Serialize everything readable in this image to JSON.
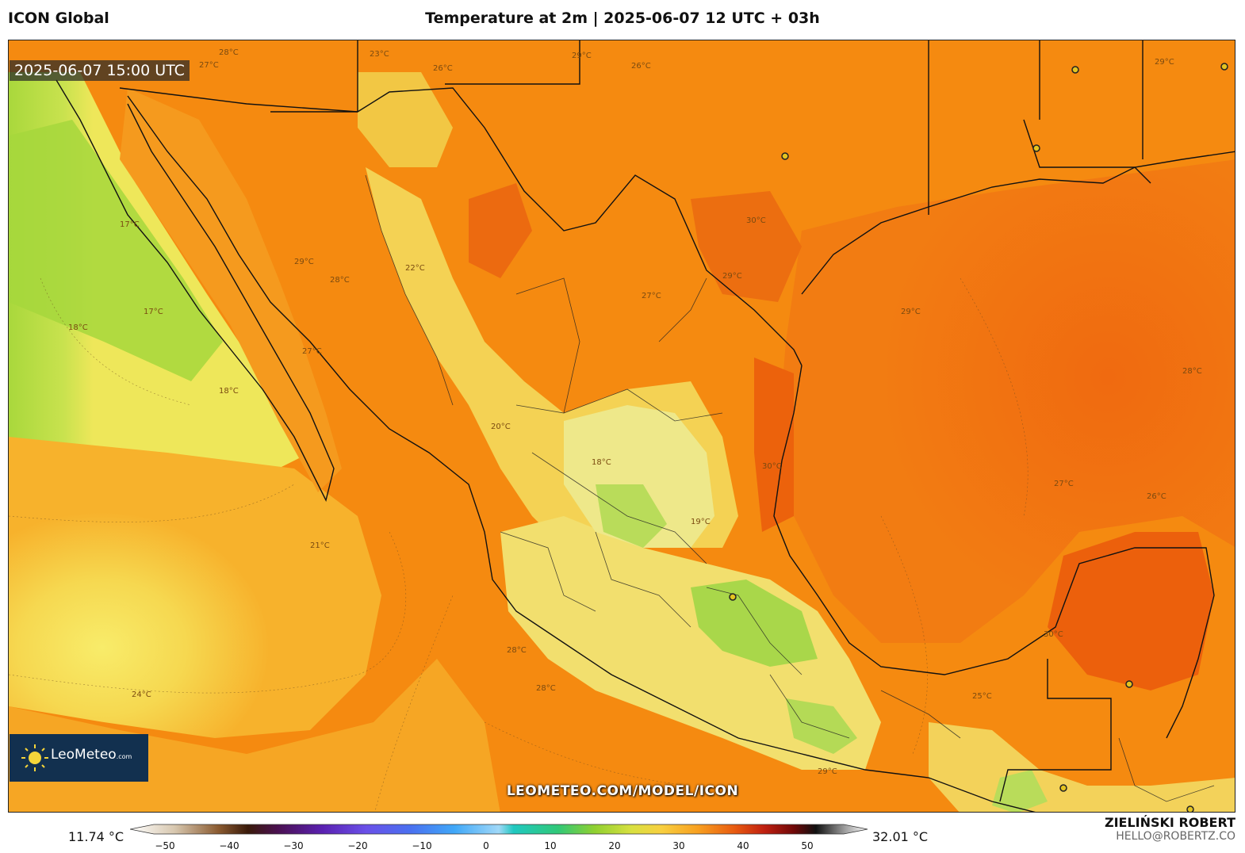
{
  "header": {
    "model": "ICON Global",
    "title": "Temperature at 2m | 2025-06-07 12 UTC + 03h"
  },
  "map": {
    "valid_time": "2025-06-07 15:00 UTC",
    "watermark": "LEOMETEO.COM/MODEL/ICON",
    "contour_labels": [
      {
        "text": "27°C"
      },
      {
        "text": "28°C"
      },
      {
        "text": "23°C"
      },
      {
        "text": "26°C"
      },
      {
        "text": "29°C"
      },
      {
        "text": "17°C"
      },
      {
        "text": "18°C"
      },
      {
        "text": "21°C"
      },
      {
        "text": "24°C"
      },
      {
        "text": "30°C"
      },
      {
        "text": "22°C"
      },
      {
        "text": "20°C"
      },
      {
        "text": "19°C"
      },
      {
        "text": "25°C"
      }
    ],
    "colors": {
      "ocean_pacific_cool": "#a8d83a",
      "pacific_mid": "#f2e35a",
      "pacific_warm": "#f7b830",
      "land_warm": "#f07e0c",
      "gulf": "#f06f10",
      "highland": "#f4e27a",
      "highland_cool": "#a8d850",
      "hot": "#e85a0a"
    }
  },
  "logo": {
    "name": "LeoMeteo",
    "suffix": ".com"
  },
  "scale": {
    "min_label": "11.74 °C",
    "max_label": "32.01 °C",
    "ticks": [
      "−50",
      "−40",
      "−30",
      "−20",
      "−10",
      "0",
      "10",
      "20",
      "30",
      "40",
      "50"
    ]
  },
  "author": {
    "name": "ZIELIŃSKI ROBERT",
    "email": "HELLO@ROBERTZ.CO"
  }
}
